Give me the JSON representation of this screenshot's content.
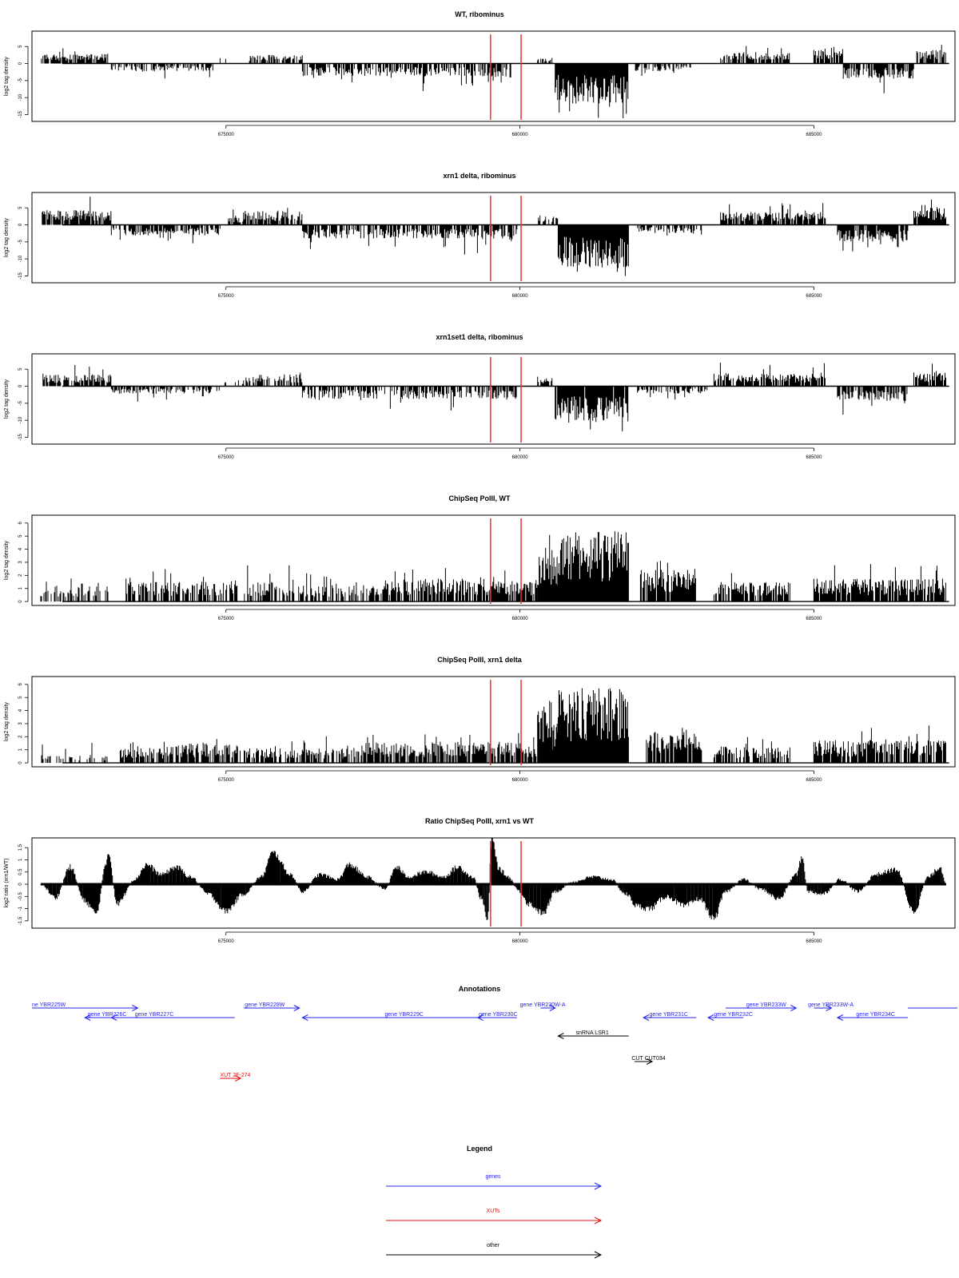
{
  "colors": {
    "signal": "#000000",
    "marker": "#e8312f",
    "gene": "#2323ee",
    "xut": "#e01010",
    "other": "#000000"
  },
  "x_range": [
    671700,
    687400
  ],
  "x_ticks": [
    675000,
    680000,
    685000
  ],
  "marker_lines": [
    679500,
    680020
  ],
  "chart_data": [
    {
      "type": "bar",
      "title": "WT, ribominus",
      "ylabel": "log2 tag density",
      "ylim": [
        -17,
        9.5
      ],
      "yticks": [
        -15,
        -10,
        -5,
        0,
        5
      ],
      "ytick_labels": [
        "-15",
        "-10",
        "-5",
        "0",
        "5"
      ],
      "regions": [
        {
          "x": [
            671860,
            673000
          ],
          "sign": 1,
          "mean": 2.3,
          "max": 6.2,
          "density": 0.8
        },
        {
          "x": [
            673050,
            674800
          ],
          "sign": -1,
          "mean": 1.8,
          "max": 5.5,
          "density": 0.6
        },
        {
          "x": [
            674900,
            675000
          ],
          "sign": 1,
          "mean": 1.5,
          "max": 2.5,
          "density": 0.3
        },
        {
          "x": [
            675400,
            676300
          ],
          "sign": 1,
          "mean": 2.0,
          "max": 3.6,
          "density": 0.7
        },
        {
          "x": [
            676300,
            679300
          ],
          "sign": -1,
          "mean": 3.0,
          "max": 8.5,
          "density": 0.65
        },
        {
          "x": [
            679300,
            679900
          ],
          "sign": -1,
          "mean": 3.3,
          "max": 6.0,
          "density": 0.6
        },
        {
          "x": [
            680300,
            680550
          ],
          "sign": 1,
          "mean": 1.5,
          "max": 4.0,
          "density": 0.4
        },
        {
          "x": [
            680600,
            681850
          ],
          "sign": -1,
          "mean": 9.5,
          "max": 16.5,
          "density": 1.0
        },
        {
          "x": [
            681950,
            682950
          ],
          "sign": -1,
          "mean": 1.8,
          "max": 3.8,
          "density": 0.5
        },
        {
          "x": [
            683400,
            684600
          ],
          "sign": 1,
          "mean": 2.7,
          "max": 5.5,
          "density": 0.75
        },
        {
          "x": [
            685000,
            685500
          ],
          "sign": 1,
          "mean": 3.5,
          "max": 6.5,
          "density": 0.8
        },
        {
          "x": [
            685500,
            686700
          ],
          "sign": -1,
          "mean": 3.6,
          "max": 8.8,
          "density": 0.8
        },
        {
          "x": [
            686750,
            687250
          ],
          "sign": 1,
          "mean": 3.2,
          "max": 5.8,
          "density": 0.85
        }
      ]
    },
    {
      "type": "bar",
      "title": "xrn1 delta, ribominus",
      "ylabel": "log2 tag density",
      "ylim": [
        -17,
        9.5
      ],
      "yticks": [
        -15,
        -10,
        -5,
        0,
        5
      ],
      "ytick_labels": [
        "-15",
        "-10",
        "-5",
        "0",
        "5"
      ],
      "regions": [
        {
          "x": [
            671860,
            673050
          ],
          "sign": 1,
          "mean": 3.5,
          "max": 8.5,
          "density": 0.9
        },
        {
          "x": [
            673050,
            674900
          ],
          "sign": -1,
          "mean": 2.5,
          "max": 5.5,
          "density": 0.7
        },
        {
          "x": [
            675000,
            675300
          ],
          "sign": 1,
          "mean": 1.8,
          "max": 5.0,
          "density": 0.4
        },
        {
          "x": [
            675300,
            676300
          ],
          "sign": 1,
          "mean": 3.3,
          "max": 6.0,
          "density": 0.8
        },
        {
          "x": [
            676300,
            679300
          ],
          "sign": -1,
          "mean": 3.2,
          "max": 9.0,
          "density": 0.7
        },
        {
          "x": [
            679350,
            679950
          ],
          "sign": -1,
          "mean": 3.5,
          "max": 6.5,
          "density": 0.8
        },
        {
          "x": [
            680300,
            680650
          ],
          "sign": 1,
          "mean": 2.2,
          "max": 5.0,
          "density": 0.6
        },
        {
          "x": [
            680650,
            681850
          ],
          "sign": -1,
          "mean": 10.0,
          "max": 15.5,
          "density": 1.0
        },
        {
          "x": [
            682000,
            683100
          ],
          "sign": -1,
          "mean": 2.0,
          "max": 4.5,
          "density": 0.6
        },
        {
          "x": [
            683400,
            685200
          ],
          "sign": 1,
          "mean": 3.0,
          "max": 6.5,
          "density": 0.8
        },
        {
          "x": [
            685400,
            686600
          ],
          "sign": -1,
          "mean": 4.0,
          "max": 9.0,
          "density": 0.85
        },
        {
          "x": [
            686700,
            687250
          ],
          "sign": 1,
          "mean": 4.0,
          "max": 7.5,
          "density": 0.9
        }
      ]
    },
    {
      "type": "bar",
      "title": "xrn1set1 delta, ribominus",
      "ylabel": "log2 tag density",
      "ylim": [
        -17,
        9.5
      ],
      "yticks": [
        -15,
        -10,
        -5,
        0,
        5
      ],
      "ytick_labels": [
        "-15",
        "-10",
        "-5",
        "0",
        "5"
      ],
      "regions": [
        {
          "x": [
            671860,
            673050
          ],
          "sign": 1,
          "mean": 2.8,
          "max": 7.5,
          "density": 0.8
        },
        {
          "x": [
            673050,
            674900
          ],
          "sign": -1,
          "mean": 1.8,
          "max": 4.5,
          "density": 0.5
        },
        {
          "x": [
            674900,
            675300
          ],
          "sign": 1,
          "mean": 1.5,
          "max": 3.5,
          "density": 0.3
        },
        {
          "x": [
            675300,
            676300
          ],
          "sign": 1,
          "mean": 2.8,
          "max": 5.5,
          "density": 0.7
        },
        {
          "x": [
            676300,
            679300
          ],
          "sign": -1,
          "mean": 3.0,
          "max": 7.5,
          "density": 0.6
        },
        {
          "x": [
            679300,
            679950
          ],
          "sign": -1,
          "mean": 3.2,
          "max": 7.0,
          "density": 0.7
        },
        {
          "x": [
            680300,
            680550
          ],
          "sign": 1,
          "mean": 2.0,
          "max": 4.5,
          "density": 0.5
        },
        {
          "x": [
            680600,
            681850
          ],
          "sign": -1,
          "mean": 8.5,
          "max": 14.5,
          "density": 0.95
        },
        {
          "x": [
            682000,
            683200
          ],
          "sign": -1,
          "mean": 1.8,
          "max": 4.0,
          "density": 0.5
        },
        {
          "x": [
            683300,
            685200
          ],
          "sign": 1,
          "mean": 3.0,
          "max": 7.0,
          "density": 0.8
        },
        {
          "x": [
            685400,
            686600
          ],
          "sign": -1,
          "mean": 3.5,
          "max": 8.5,
          "density": 0.8
        },
        {
          "x": [
            686700,
            687250
          ],
          "sign": 1,
          "mean": 3.3,
          "max": 7.0,
          "density": 0.85
        }
      ]
    },
    {
      "type": "bar",
      "title": "ChipSeq PolII, WT",
      "ylabel": "log2 tag density",
      "ylim": [
        -0.3,
        6.6
      ],
      "yticks": [
        0,
        1,
        2,
        3,
        4,
        5,
        6
      ],
      "ytick_labels": [
        "0",
        "1",
        "2",
        "3",
        "4",
        "5",
        "6"
      ],
      "regions": [
        {
          "x": [
            671850,
            673000
          ],
          "sign": 1,
          "mean": 1.0,
          "max": 2.0,
          "density": 0.5
        },
        {
          "x": [
            673300,
            674400
          ],
          "sign": 1,
          "mean": 1.2,
          "max": 2.5,
          "density": 0.6
        },
        {
          "x": [
            674400,
            675200
          ],
          "sign": 1,
          "mean": 1.3,
          "max": 2.7,
          "density": 0.7
        },
        {
          "x": [
            675300,
            676100
          ],
          "sign": 1,
          "mean": 1.2,
          "max": 2.8,
          "density": 0.6
        },
        {
          "x": [
            676100,
            677000
          ],
          "sign": 1,
          "mean": 1.0,
          "max": 2.2,
          "density": 0.5
        },
        {
          "x": [
            677000,
            677700
          ],
          "sign": 1,
          "mean": 1.0,
          "max": 1.5,
          "density": 0.5
        },
        {
          "x": [
            677700,
            679500
          ],
          "sign": 1,
          "mean": 1.4,
          "max": 2.8,
          "density": 0.75
        },
        {
          "x": [
            679500,
            680300
          ],
          "sign": 1,
          "mean": 1.3,
          "max": 2.8,
          "density": 0.8
        },
        {
          "x": [
            680300,
            680550
          ],
          "sign": 1,
          "mean": 3.5,
          "max": 6.3,
          "density": 1.0
        },
        {
          "x": [
            680550,
            680650
          ],
          "sign": 1,
          "mean": 2.5,
          "max": 3.5,
          "density": 1.0
        },
        {
          "x": [
            680650,
            681850
          ],
          "sign": 1,
          "mean": 4.3,
          "max": 5.4,
          "density": 1.0
        },
        {
          "x": [
            682050,
            683000
          ],
          "sign": 1,
          "mean": 2.0,
          "max": 3.3,
          "density": 0.9
        },
        {
          "x": [
            683300,
            684600
          ],
          "sign": 1,
          "mean": 1.2,
          "max": 2.8,
          "density": 0.7
        },
        {
          "x": [
            685000,
            687250
          ],
          "sign": 1,
          "mean": 1.4,
          "max": 3.0,
          "density": 0.8
        }
      ]
    },
    {
      "type": "bar",
      "title": "ChipSeq PolII, xrn1 delta",
      "ylabel": "log2 tag density",
      "ylim": [
        -0.3,
        6.6
      ],
      "yticks": [
        0,
        1,
        2,
        3,
        4,
        5,
        6
      ],
      "ytick_labels": [
        "0",
        "1",
        "2",
        "3",
        "4",
        "5",
        "6"
      ],
      "regions": [
        {
          "x": [
            671850,
            673000
          ],
          "sign": 1,
          "mean": 0.5,
          "max": 1.6,
          "density": 0.4
        },
        {
          "x": [
            673200,
            674000
          ],
          "sign": 1,
          "mean": 0.9,
          "max": 2.0,
          "density": 0.7
        },
        {
          "x": [
            674000,
            675200
          ],
          "sign": 1,
          "mean": 1.2,
          "max": 2.2,
          "density": 0.75
        },
        {
          "x": [
            675200,
            676000
          ],
          "sign": 1,
          "mean": 0.9,
          "max": 1.6,
          "density": 0.6
        },
        {
          "x": [
            676000,
            677000
          ],
          "sign": 1,
          "mean": 0.9,
          "max": 2.7,
          "density": 0.6
        },
        {
          "x": [
            677000,
            679500
          ],
          "sign": 1,
          "mean": 1.3,
          "max": 2.2,
          "density": 0.8
        },
        {
          "x": [
            679500,
            680300
          ],
          "sign": 1,
          "mean": 1.3,
          "max": 2.4,
          "density": 0.85
        },
        {
          "x": [
            680300,
            680550
          ],
          "sign": 1,
          "mean": 3.8,
          "max": 5.7,
          "density": 1.0
        },
        {
          "x": [
            680550,
            680650
          ],
          "sign": 1,
          "mean": 2.5,
          "max": 3.5,
          "density": 1.0
        },
        {
          "x": [
            680650,
            681850
          ],
          "sign": 1,
          "mean": 4.6,
          "max": 5.8,
          "density": 1.0
        },
        {
          "x": [
            682150,
            683100
          ],
          "sign": 1,
          "mean": 1.9,
          "max": 2.9,
          "density": 0.95
        },
        {
          "x": [
            683300,
            684600
          ],
          "sign": 1,
          "mean": 1.0,
          "max": 2.0,
          "density": 0.7
        },
        {
          "x": [
            685000,
            687250
          ],
          "sign": 1,
          "mean": 1.4,
          "max": 2.9,
          "density": 0.8
        }
      ]
    },
    {
      "type": "area",
      "title": "Ratio ChipSeq PolII, xrn1 vs WT",
      "ylabel": "log2 ratio (xrn1/WT)",
      "ylim": [
        -1.8,
        1.9
      ],
      "yticks": [
        -1.5,
        -1,
        -0.5,
        0,
        0.5,
        1,
        1.5
      ],
      "ytick_labels": [
        "-1.5",
        "-1",
        "-0.5",
        "0",
        "0.5",
        "1",
        "1.5"
      ],
      "x": [
        671850,
        672100,
        672350,
        672600,
        672800,
        672950,
        673000,
        673150,
        673450,
        673650,
        673900,
        674150,
        674400,
        674700,
        675000,
        675300,
        675600,
        675800,
        676100,
        676300,
        676600,
        676900,
        677100,
        677400,
        677700,
        677900,
        678100,
        678400,
        678700,
        678950,
        679200,
        679350,
        679450,
        679520,
        679650,
        679800,
        680000,
        680150,
        680400,
        680600,
        680900,
        681250,
        681550,
        681800,
        682000,
        682200,
        682500,
        682800,
        683050,
        683300,
        683500,
        683800,
        684100,
        684400,
        684700,
        684800,
        684900,
        685150,
        685450,
        685750,
        686050,
        686400,
        686700,
        686950,
        687150,
        687250
      ],
      "y": [
        0,
        -0.55,
        0.7,
        -0.7,
        -1.2,
        0.7,
        1.3,
        -0.8,
        0.2,
        0.8,
        0.4,
        0.7,
        0.3,
        -0.4,
        -1.1,
        -0.4,
        0.3,
        1.3,
        0.4,
        -0.3,
        0.4,
        0.2,
        0.8,
        0.3,
        -0.2,
        0.7,
        0.3,
        0.5,
        0.3,
        0.7,
        0.3,
        -0.6,
        -1.5,
        1.9,
        0.6,
        0.3,
        -0.3,
        -0.8,
        -1.2,
        -0.3,
        0.1,
        0.3,
        0.2,
        -0.4,
        -0.9,
        -1.0,
        -0.5,
        -0.9,
        -0.6,
        -1.4,
        -0.3,
        0.2,
        -0.2,
        -0.6,
        0.4,
        1.1,
        -0.3,
        -0.4,
        0.2,
        -0.3,
        0.4,
        0.6,
        -1.1,
        0.3,
        0.7,
        0
      ]
    }
  ],
  "annotations": {
    "title": "Annotations",
    "genes": [
      {
        "label": "ne YBR225W",
        "x0": 671700,
        "x1": 673500,
        "dir": "right",
        "row": 0,
        "lx": 671700
      },
      {
        "label": "gene YBR226C",
        "x0": 672600,
        "x1": 673050,
        "dir": "left",
        "row": 1,
        "lx": 672650
      },
      {
        "label": "gene YBR227C",
        "x0": 673050,
        "x1": 675150,
        "dir": "left",
        "row": 1,
        "lx": 673450
      },
      {
        "label": "gene YBR228W",
        "x0": 675300,
        "x1": 676250,
        "dir": "right",
        "row": 0,
        "lx": 675320
      },
      {
        "label": "gene YBR229C",
        "x0": 676300,
        "x1": 679300,
        "dir": "left",
        "row": 1,
        "lx": 677700
      },
      {
        "label": "gene YBR230C",
        "x0": 679280,
        "x1": 679950,
        "dir": "left",
        "row": 1,
        "lx": 679300
      },
      {
        "label": "gene YBR230W-A",
        "x0": 680350,
        "x1": 680600,
        "dir": "right",
        "row": 0,
        "lx": 680000
      },
      {
        "label": "gene YBR231C",
        "x0": 682100,
        "x1": 683000,
        "dir": "left",
        "row": 1,
        "lx": 682200
      },
      {
        "label": "gene YBR232C",
        "x0": 683200,
        "x1": 683800,
        "dir": "left",
        "row": 1,
        "lx": 683300
      },
      {
        "label": "gene YBR233W",
        "x0": 683500,
        "x1": 684700,
        "dir": "right",
        "row": 0,
        "lx": 683850
      },
      {
        "label": "gene YBR233W-A",
        "x0": 685000,
        "x1": 685300,
        "dir": "right",
        "row": 0,
        "lx": 684900
      },
      {
        "label": "gene YBR234C",
        "x0": 685400,
        "x1": 686600,
        "dir": "left",
        "row": 1,
        "lx": 685720
      },
      {
        "label": "",
        "x0": 686600,
        "x1": 687600,
        "dir": "none",
        "row": 0,
        "lx": 686600
      }
    ],
    "other": [
      {
        "label": "snRNA LSR1",
        "x0": 680650,
        "x1": 681850,
        "dir": "left",
        "row": 2,
        "lx": 680950
      },
      {
        "label": "CUT CUT034",
        "x0": 681950,
        "x1": 682250,
        "dir": "right",
        "row": 3,
        "lx": 681900
      }
    ],
    "xuts": [
      {
        "label": "XUT 2F-274",
        "x0": 674900,
        "x1": 675250,
        "dir": "right",
        "row": 4,
        "lx": 674900
      }
    ]
  },
  "legend": {
    "title": "Legend",
    "entries": [
      {
        "label": "genes",
        "kind": "gene"
      },
      {
        "label": "XUTs",
        "kind": "xut"
      },
      {
        "label": "other",
        "kind": "other"
      }
    ]
  }
}
